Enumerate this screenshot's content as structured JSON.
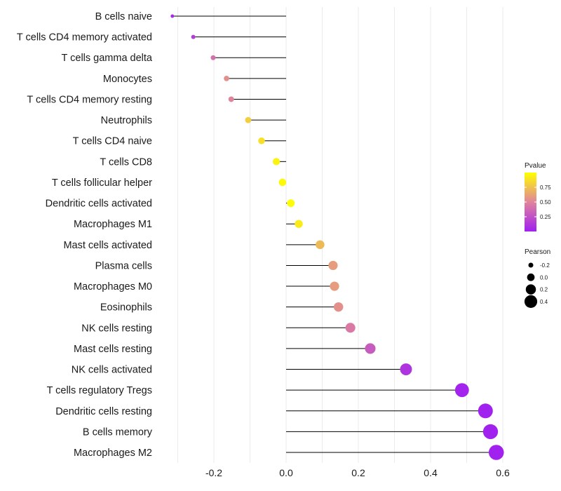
{
  "chart_data": {
    "type": "lollipop",
    "categories": [
      "B cells naive",
      "T cells CD4 memory activated",
      "T cells gamma delta",
      "Monocytes",
      "T cells CD4 memory resting",
      "Neutrophils",
      "T cells CD4 naive",
      "T cells CD8",
      "T cells follicular helper",
      "Dendritic cells activated",
      "Macrophages M1",
      "Mast cells activated",
      "Plasma cells",
      "Macrophages M0",
      "Eosinophils",
      "NK cells resting",
      "Mast cells resting",
      "NK cells activated",
      "T cells regulatory  Tregs ",
      "Dendritic cells resting",
      "B cells memory",
      "Macrophages M2"
    ],
    "pearson": [
      -0.315,
      -0.257,
      -0.202,
      -0.165,
      -0.152,
      -0.105,
      -0.068,
      -0.027,
      -0.01,
      0.013,
      0.035,
      0.094,
      0.13,
      0.134,
      0.145,
      0.178,
      0.233,
      0.332,
      0.487,
      0.552,
      0.566,
      0.582
    ],
    "pvalue": [
      0.05,
      0.15,
      0.4,
      0.55,
      0.5,
      0.8,
      0.88,
      0.95,
      0.98,
      0.99,
      0.92,
      0.72,
      0.6,
      0.6,
      0.55,
      0.45,
      0.3,
      0.1,
      0.02,
      0.01,
      0.01,
      0.01
    ],
    "x_ticks": [
      -0.2,
      0.0,
      0.2,
      0.4,
      0.6
    ],
    "x_tick_labels": [
      "-0.2",
      "0.0",
      "0.2",
      "0.4",
      "0.6"
    ],
    "xlim": [
      -0.345,
      0.625
    ],
    "xlabel": "",
    "ylabel": "",
    "grid": "vertical",
    "legend": {
      "position": "right",
      "color_title": "Pvalue",
      "color_ticks": [
        0.75,
        0.5,
        0.25
      ],
      "color_tick_labels": [
        "0.75",
        "0.50",
        "0.25"
      ],
      "color_range": [
        0.0,
        1.0
      ],
      "size_title": "Pearson",
      "size_keys": [
        -0.2,
        0.0,
        0.2,
        0.4
      ],
      "size_labels": [
        "-0.2",
        "0.0",
        "0.2",
        "0.4"
      ]
    },
    "colors": {
      "low": "#a020f0",
      "mid": "#e0849c",
      "high": "#ffff00",
      "stem": "#000000",
      "grid": "#ebebeb"
    }
  }
}
